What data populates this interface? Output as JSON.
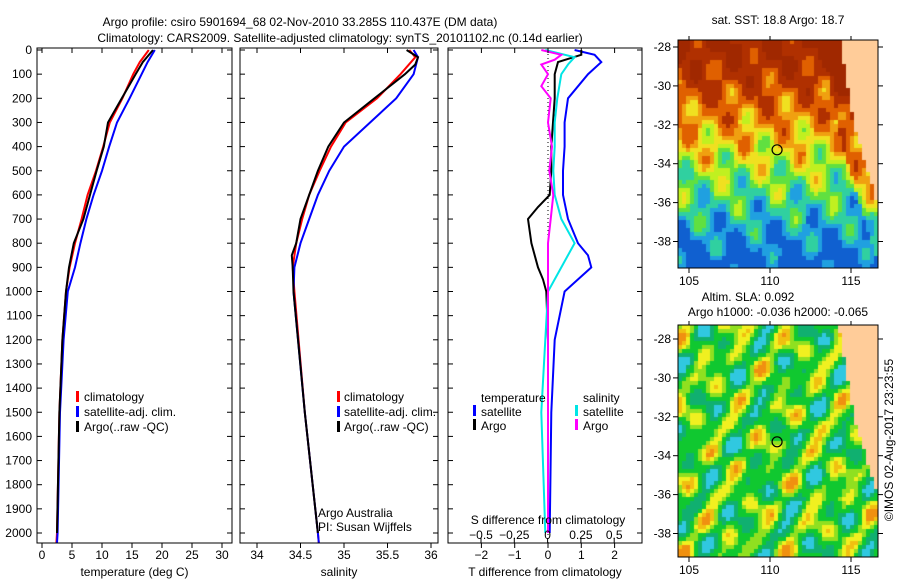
{
  "title": {
    "line1": "Argo profile: csiro 5901694_68 02-Nov-2010 33.285S 110.437E (DM data)",
    "line2": "Climatology: CARS2009. Satellite-adjusted climatology: synTS_20101102.nc (0.14d earlier)"
  },
  "colors": {
    "climatology": "#ff0000",
    "satellite": "#0000ff",
    "argo": "#000000",
    "sal_satellite": "#00e5e5",
    "sal_argo": "#ff00ff",
    "land": "#ffcc99"
  },
  "chart_data": [
    {
      "type": "line",
      "xlabel": "temperature (deg C)",
      "ylabel": "",
      "xlim": [
        -2,
        32
      ],
      "ylim": [
        2040,
        0
      ],
      "xticks": [
        0,
        5,
        10,
        15,
        20,
        25,
        30
      ],
      "yticks": [
        0,
        100,
        200,
        300,
        400,
        500,
        600,
        700,
        800,
        900,
        1000,
        1100,
        1200,
        1300,
        1400,
        1500,
        1600,
        1700,
        1800,
        1900,
        2000
      ],
      "legend": [
        "climatology",
        "satellite-adj. clim.",
        "Argo(..raw -QC)"
      ],
      "series": [
        {
          "name": "climatology",
          "color": "#ff0000",
          "depth": [
            0,
            50,
            100,
            200,
            300,
            400,
            500,
            600,
            700,
            800,
            900,
            1000,
            1200,
            1500,
            2000,
            2040
          ],
          "values": [
            17.8,
            16.3,
            15.2,
            13.4,
            11.3,
            10.2,
            9.0,
            7.6,
            6.6,
            5.5,
            4.6,
            4.0,
            3.4,
            2.9,
            2.5,
            2.4
          ]
        },
        {
          "name": "satellite-adj. clim.",
          "color": "#0000ff",
          "depth": [
            0,
            50,
            100,
            200,
            300,
            400,
            500,
            600,
            700,
            800,
            900,
            1000,
            1200,
            1500,
            2000,
            2040
          ],
          "values": [
            18.8,
            17.6,
            16.6,
            14.6,
            12.5,
            11.2,
            10.0,
            8.6,
            7.4,
            6.4,
            5.5,
            4.3,
            3.6,
            3.0,
            2.6,
            2.5
          ]
        },
        {
          "name": "Argo(..raw -QC)",
          "color": "#000000",
          "depth": [
            0,
            50,
            100,
            200,
            300,
            400,
            500,
            600,
            700,
            800,
            900,
            1000,
            1200,
            1500,
            2000
          ],
          "values": [
            18.5,
            16.8,
            15.6,
            13.3,
            11.0,
            10.3,
            9.1,
            8.0,
            6.9,
            5.3,
            4.5,
            4.0,
            3.4,
            2.9,
            2.5
          ]
        }
      ]
    },
    {
      "type": "line",
      "xlabel": "salinity",
      "xlim": [
        33.8,
        36.07
      ],
      "ylim": [
        2040,
        0
      ],
      "xticks": [
        34,
        34.5,
        35,
        35.5,
        36
      ],
      "legend": [
        "climatology",
        "satellite-adj. clim.",
        "Argo(..raw -QC)"
      ],
      "annotation": [
        "Argo Australia",
        "PI: Susan Wijffels"
      ],
      "series": [
        {
          "name": "climatology",
          "color": "#ff0000",
          "depth": [
            0,
            30,
            100,
            200,
            300,
            400,
            500,
            600,
            700,
            800,
            900,
            1000,
            1500,
            2000,
            2040
          ],
          "values": [
            35.75,
            35.82,
            35.65,
            35.38,
            35.02,
            34.85,
            34.72,
            34.6,
            34.52,
            34.45,
            34.41,
            34.43,
            34.55,
            34.7,
            34.71
          ]
        },
        {
          "name": "satellite-adj. clim.",
          "color": "#0000ff",
          "depth": [
            0,
            30,
            100,
            200,
            300,
            400,
            500,
            600,
            700,
            800,
            900,
            1000,
            1500,
            2000,
            2040
          ],
          "values": [
            35.8,
            35.85,
            35.8,
            35.6,
            35.3,
            35.0,
            34.83,
            34.7,
            34.6,
            34.5,
            34.43,
            34.42,
            34.55,
            34.7,
            34.71
          ]
        },
        {
          "name": "Argo(..raw -QC)",
          "color": "#000000",
          "depth": [
            0,
            30,
            60,
            100,
            200,
            300,
            400,
            500,
            600,
            700,
            800,
            850,
            900,
            1000,
            1500,
            2000
          ],
          "values": [
            35.72,
            35.85,
            35.82,
            35.7,
            35.35,
            35.0,
            34.82,
            34.7,
            34.6,
            34.5,
            34.45,
            34.4,
            34.41,
            34.42,
            34.55,
            34.7
          ]
        }
      ]
    },
    {
      "type": "line",
      "xlabel": "T difference from climatology",
      "x2label": "S difference from climatology",
      "xlim": [
        -3,
        2.85
      ],
      "x2lim": [
        -0.75,
        0.7125
      ],
      "ylim": [
        2040,
        0
      ],
      "xticks": [
        -2,
        -1,
        0,
        1,
        2
      ],
      "x2ticks": [
        "-0.5",
        "-0.25",
        "0",
        "0.25",
        "0.5"
      ],
      "legend_temperature": {
        "title": "temperature",
        "items": [
          "satellite",
          "Argo"
        ]
      },
      "legend_salinity": {
        "title": "salinity",
        "items": [
          "satellite",
          "Argo"
        ]
      },
      "series": [
        {
          "name": "T satellite",
          "color": "#0000ff",
          "axis": "T",
          "depth": [
            0,
            20,
            50,
            100,
            200,
            300,
            400,
            500,
            600,
            700,
            800,
            850,
            900,
            950,
            1000,
            1200,
            1500,
            2000
          ],
          "values": [
            0.8,
            1.4,
            1.6,
            1.2,
            0.6,
            0.5,
            0.5,
            0.45,
            0.45,
            0.6,
            0.9,
            1.2,
            1.3,
            0.9,
            0.5,
            0.2,
            0.1,
            0.05
          ]
        },
        {
          "name": "T Argo",
          "color": "#000000",
          "axis": "T",
          "depth": [
            0,
            20,
            50,
            100,
            200,
            300,
            400,
            500,
            600,
            650,
            700,
            750,
            800,
            850,
            900,
            950,
            1000,
            1200,
            1500,
            2000
          ],
          "values": [
            1.0,
            1.0,
            0.3,
            0.2,
            0.2,
            0.15,
            0.1,
            0.1,
            0.05,
            -0.3,
            -0.6,
            -0.55,
            -0.5,
            -0.4,
            -0.3,
            -0.15,
            -0.05,
            0,
            0,
            0
          ]
        },
        {
          "name": "S satellite",
          "color": "#00e5e5",
          "axis": "S",
          "depth": [
            0,
            30,
            60,
            100,
            200,
            300,
            400,
            500,
            600,
            700,
            800,
            900,
            1000,
            1200,
            1500,
            2000
          ],
          "values": [
            -0.02,
            0.2,
            0.15,
            0.1,
            0.07,
            0.05,
            0.05,
            0.04,
            0.05,
            0.1,
            0.2,
            0.1,
            0.0,
            -0.02,
            -0.05,
            -0.02
          ]
        },
        {
          "name": "S Argo",
          "color": "#ff00ff",
          "axis": "S",
          "depth": [
            0,
            20,
            40,
            60,
            100,
            150,
            200,
            300,
            400,
            500,
            600,
            700,
            800,
            1000,
            1500,
            2000
          ],
          "values": [
            -0.05,
            0.1,
            0.05,
            -0.05,
            0.0,
            -0.05,
            0.02,
            0.0,
            0.03,
            0.01,
            0.04,
            0.02,
            0.0,
            0.0,
            0.0,
            0.0
          ]
        }
      ]
    }
  ],
  "maps": [
    {
      "title": "sat. SST: 18.8 Argo: 18.7",
      "xticks": [
        "105",
        "110",
        "115"
      ],
      "yticks": [
        "-28",
        "-30",
        "-32",
        "-34",
        "-36",
        "-38"
      ],
      "argo_lon": 110.437,
      "argo_lat": -33.285
    },
    {
      "title1": "Altim. SLA: 0.092",
      "title2": "Argo h1000: -0.036 h2000: -0.065",
      "xticks": [
        "105",
        "110",
        "115"
      ],
      "yticks": [
        "-28",
        "-30",
        "-32",
        "-34",
        "-36",
        "-38"
      ],
      "argo_lon": 110.437,
      "argo_lat": -33.285
    }
  ],
  "footer": "©IMOS 02-Aug-2017 23:23:55"
}
